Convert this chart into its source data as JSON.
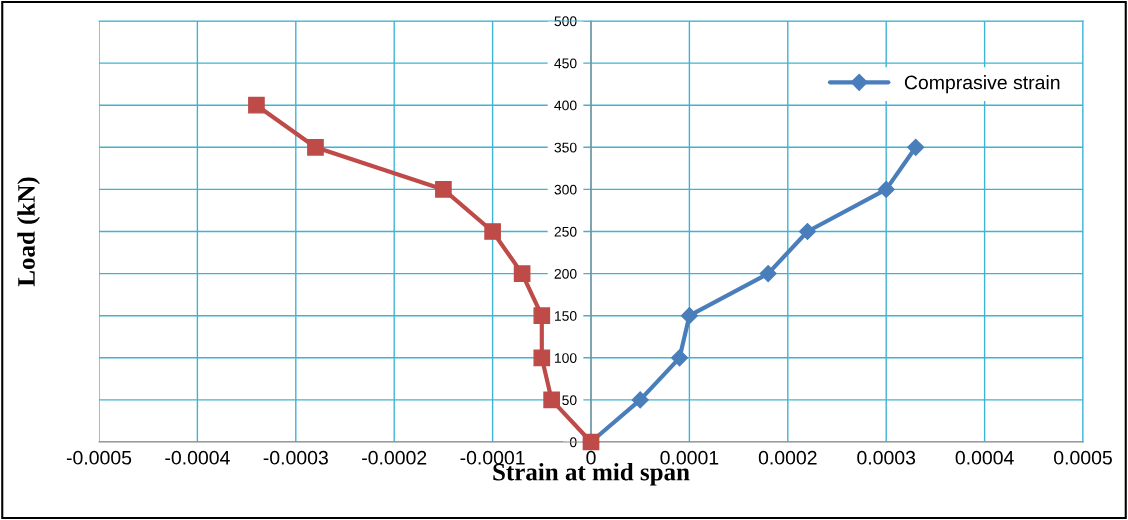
{
  "chart_data": {
    "type": "line",
    "xlabel": "Strain at mid span",
    "ylabel": "Load (kN)",
    "xlim": [
      -0.0005,
      0.0005
    ],
    "xticks": [
      -0.0005,
      -0.0004,
      -0.0003,
      -0.0002,
      -0.0001,
      0,
      0.0001,
      0.0002,
      0.0003,
      0.0004,
      0.0005
    ],
    "ylim": [
      0,
      500
    ],
    "yticks": [
      0,
      50,
      100,
      150,
      200,
      250,
      300,
      350,
      400,
      450,
      500
    ],
    "grid": true,
    "legend": "top right",
    "line_style": "solid",
    "series": [
      {
        "name": "Comprasive strain",
        "color": "#4a7ebb",
        "marker": "diamond",
        "x": [
          0,
          5e-05,
          9e-05,
          0.0001,
          0.00018,
          0.00022,
          0.0003,
          0.00033
        ],
        "values": [
          0,
          50,
          100,
          150,
          200,
          250,
          300,
          350
        ]
      },
      {
        "color": "#be4b48",
        "marker": "square",
        "x": [
          0,
          -4e-05,
          -5e-05,
          -5e-05,
          -7e-05,
          -0.0001,
          -0.00015,
          -0.00028,
          -0.00034
        ],
        "values": [
          0,
          50,
          100,
          150,
          200,
          250,
          300,
          350,
          400
        ]
      }
    ]
  }
}
